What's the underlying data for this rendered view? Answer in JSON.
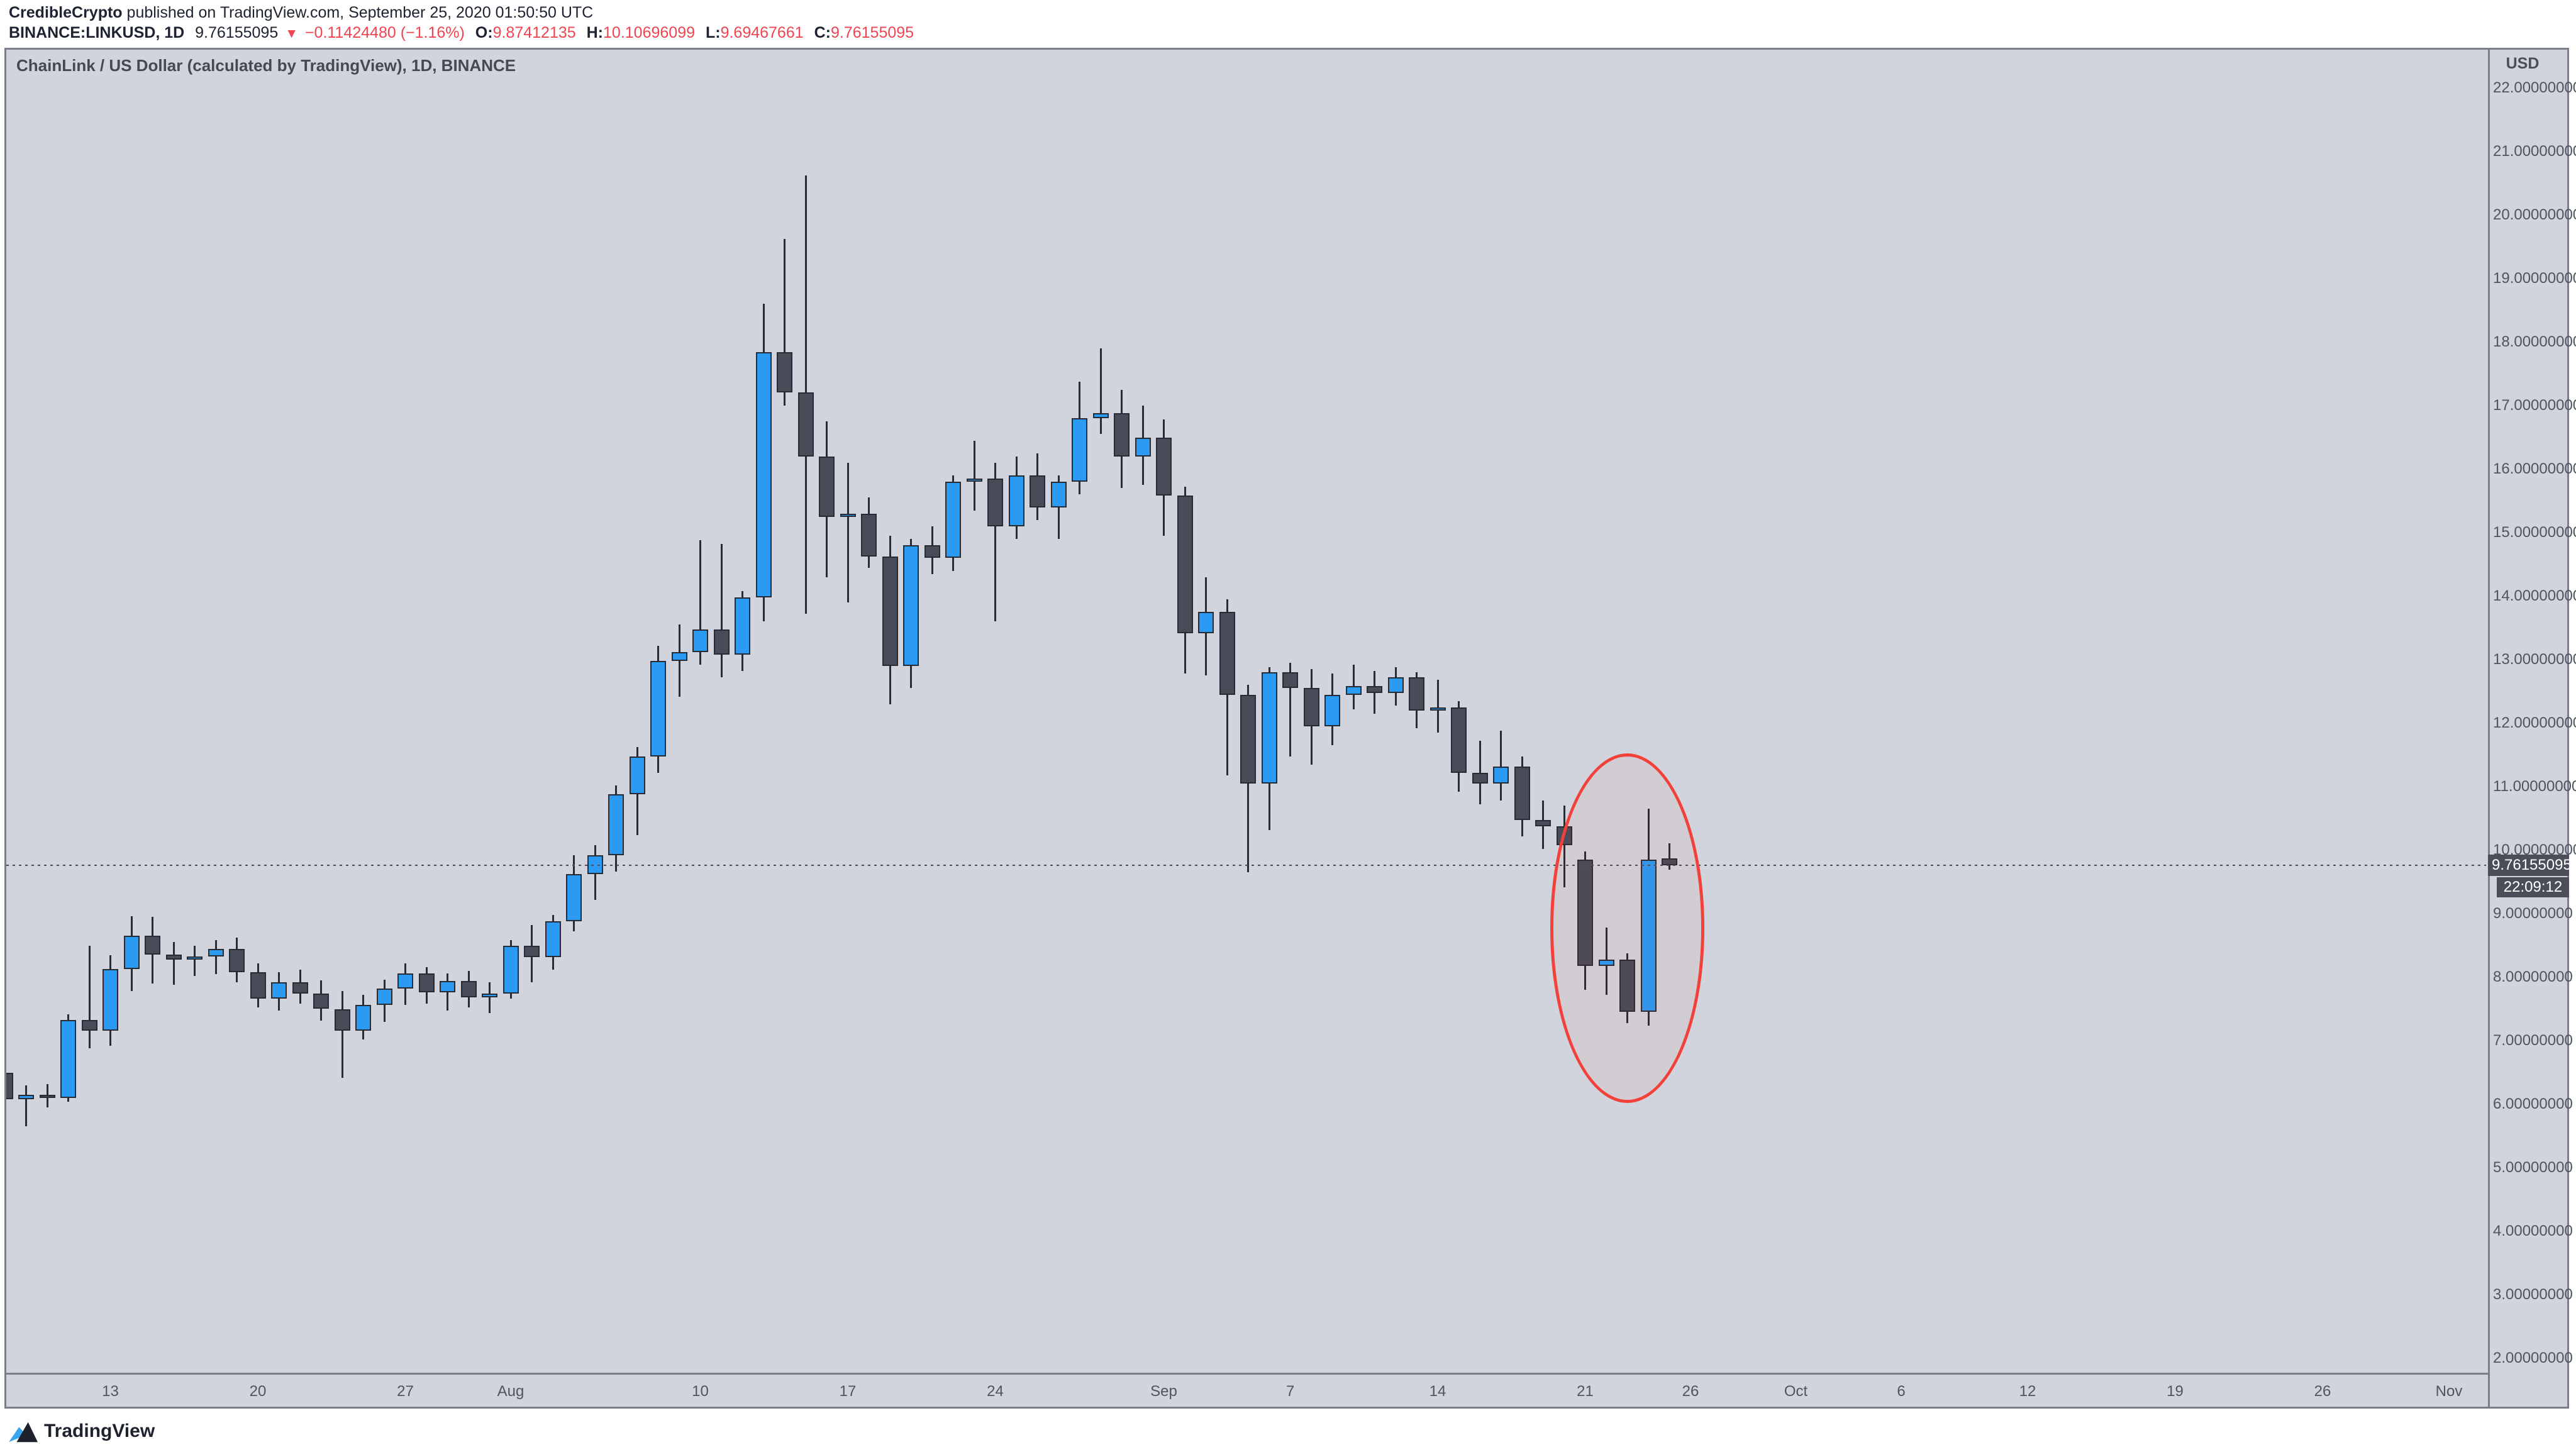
{
  "header": {
    "author": "CredibleCrypto",
    "published": " published on TradingView.com, September 25, 2020 01:50:50 UTC",
    "symbol": "BINANCE:LINKUSD, 1D",
    "last_price": "9.76155095",
    "direction_arrow": "▼",
    "change": "−0.11424480 (−1.16%)",
    "o_label": "O:",
    "o_value": "9.87412135",
    "h_label": "H:",
    "h_value": "10.10696099",
    "l_label": "L:",
    "l_value": "9.69467661",
    "c_label": "C:",
    "c_value": "9.76155095"
  },
  "chart": {
    "title": "ChainLink / US Dollar (calculated by TradingView), 1D, BINANCE",
    "axis_currency": "USD",
    "price_label": "9.76155095",
    "countdown": "22:09:12"
  },
  "footer": {
    "brand": "TradingView"
  },
  "colors": {
    "pane_bg": "#d1d4dc",
    "up_candle": "#2a9af2",
    "down_candle": "#474c58",
    "candle_outline": "#272b33",
    "value_red": "#ef4553",
    "ellipse_red": "#f2413b",
    "label_bg": "#4a4e59",
    "axis_text": "#4f545e"
  },
  "chart_data": {
    "type": "candlestick",
    "title": "ChainLink / US Dollar (calculated by TradingView), 1D, BINANCE",
    "ylabel": "USD",
    "ylim": [
      2,
      22
    ],
    "grid": false,
    "legend_position": "none",
    "price_ticks": [
      "2.00000000",
      "3.00000000",
      "4.00000000",
      "5.00000000",
      "6.00000000",
      "7.00000000",
      "8.00000000",
      "9.00000000",
      "10.00000000",
      "11.00000000",
      "12.00000000",
      "13.00000000",
      "14.00000000",
      "15.00000000",
      "16.00000000",
      "17.00000000",
      "18.00000000",
      "19.00000000",
      "20.00000000",
      "21.00000000",
      "22.00000000"
    ],
    "time_ticks": [
      {
        "label": "13",
        "day": 5
      },
      {
        "label": "20",
        "day": 12
      },
      {
        "label": "27",
        "day": 19
      },
      {
        "label": "Aug",
        "day": 24
      },
      {
        "label": "10",
        "day": 33
      },
      {
        "label": "17",
        "day": 40
      },
      {
        "label": "24",
        "day": 47
      },
      {
        "label": "Sep",
        "day": 55
      },
      {
        "label": "7",
        "day": 61
      },
      {
        "label": "14",
        "day": 68
      },
      {
        "label": "21",
        "day": 75
      },
      {
        "label": "26",
        "day": 80
      },
      {
        "label": "Oct",
        "day": 85
      },
      {
        "label": "6",
        "day": 90
      },
      {
        "label": "12",
        "day": 96
      },
      {
        "label": "19",
        "day": 103
      },
      {
        "label": "26",
        "day": 110
      },
      {
        "label": "Nov",
        "day": 116
      }
    ],
    "price_line": 9.76155095,
    "countdown": "22:09:12",
    "annotations": {
      "ellipse": {
        "center_day": 77.0,
        "center_price": 8.77,
        "rx_days": 3.67,
        "ry_price": 2.75
      }
    },
    "candles": [
      {
        "date": "Jul 8",
        "o": 6.5,
        "h": 6.72,
        "l": 5.92,
        "c": 6.08
      },
      {
        "date": "Jul 9",
        "o": 6.08,
        "h": 6.3,
        "l": 5.65,
        "c": 6.15
      },
      {
        "date": "Jul 10",
        "o": 6.15,
        "h": 6.32,
        "l": 5.95,
        "c": 6.1
      },
      {
        "date": "Jul 11",
        "o": 6.1,
        "h": 7.42,
        "l": 6.04,
        "c": 7.33
      },
      {
        "date": "Jul 12",
        "o": 7.33,
        "h": 8.5,
        "l": 6.88,
        "c": 7.16
      },
      {
        "date": "Jul 13",
        "o": 7.16,
        "h": 8.35,
        "l": 6.92,
        "c": 8.13
      },
      {
        "date": "Jul 14",
        "o": 8.13,
        "h": 8.96,
        "l": 7.78,
        "c": 8.65
      },
      {
        "date": "Jul 15",
        "o": 8.65,
        "h": 8.95,
        "l": 7.9,
        "c": 8.36
      },
      {
        "date": "Jul 16",
        "o": 8.36,
        "h": 8.55,
        "l": 7.88,
        "c": 8.28
      },
      {
        "date": "Jul 17",
        "o": 8.28,
        "h": 8.5,
        "l": 8.02,
        "c": 8.33
      },
      {
        "date": "Jul 18",
        "o": 8.33,
        "h": 8.58,
        "l": 8.05,
        "c": 8.45
      },
      {
        "date": "Jul 19",
        "o": 8.45,
        "h": 8.62,
        "l": 7.92,
        "c": 8.08
      },
      {
        "date": "Jul 20",
        "o": 8.08,
        "h": 8.22,
        "l": 7.52,
        "c": 7.66
      },
      {
        "date": "Jul 21",
        "o": 7.66,
        "h": 8.08,
        "l": 7.48,
        "c": 7.92
      },
      {
        "date": "Jul 22",
        "o": 7.92,
        "h": 8.12,
        "l": 7.58,
        "c": 7.74
      },
      {
        "date": "Jul 23",
        "o": 7.74,
        "h": 7.95,
        "l": 7.32,
        "c": 7.5
      },
      {
        "date": "Jul 24",
        "o": 7.5,
        "h": 7.78,
        "l": 6.42,
        "c": 7.16
      },
      {
        "date": "Jul 25",
        "o": 7.16,
        "h": 7.72,
        "l": 7.02,
        "c": 7.56
      },
      {
        "date": "Jul 26",
        "o": 7.56,
        "h": 7.96,
        "l": 7.3,
        "c": 7.82
      },
      {
        "date": "Jul 27",
        "o": 7.82,
        "h": 8.22,
        "l": 7.56,
        "c": 8.06
      },
      {
        "date": "Jul 28",
        "o": 8.06,
        "h": 8.16,
        "l": 7.58,
        "c": 7.76
      },
      {
        "date": "Jul 29",
        "o": 7.76,
        "h": 8.06,
        "l": 7.48,
        "c": 7.94
      },
      {
        "date": "Jul 30",
        "o": 7.94,
        "h": 8.1,
        "l": 7.52,
        "c": 7.68
      },
      {
        "date": "Jul 31",
        "o": 7.68,
        "h": 7.92,
        "l": 7.44,
        "c": 7.74
      },
      {
        "date": "Aug 1",
        "o": 7.74,
        "h": 8.58,
        "l": 7.66,
        "c": 8.5
      },
      {
        "date": "Aug 2",
        "o": 8.5,
        "h": 8.82,
        "l": 7.92,
        "c": 8.32
      },
      {
        "date": "Aug 3",
        "o": 8.32,
        "h": 8.98,
        "l": 8.12,
        "c": 8.88
      },
      {
        "date": "Aug 4",
        "o": 8.88,
        "h": 9.92,
        "l": 8.72,
        "c": 9.62
      },
      {
        "date": "Aug 5",
        "o": 9.62,
        "h": 10.08,
        "l": 9.22,
        "c": 9.92
      },
      {
        "date": "Aug 6",
        "o": 9.92,
        "h": 11.02,
        "l": 9.66,
        "c": 10.88
      },
      {
        "date": "Aug 7",
        "o": 10.88,
        "h": 11.62,
        "l": 10.24,
        "c": 11.48
      },
      {
        "date": "Aug 8",
        "o": 11.48,
        "h": 13.22,
        "l": 11.22,
        "c": 12.98
      },
      {
        "date": "Aug 9",
        "o": 12.98,
        "h": 13.55,
        "l": 12.42,
        "c": 13.12
      },
      {
        "date": "Aug 10",
        "o": 13.12,
        "h": 14.88,
        "l": 12.92,
        "c": 13.48
      },
      {
        "date": "Aug 11",
        "o": 13.48,
        "h": 14.82,
        "l": 12.72,
        "c": 13.08
      },
      {
        "date": "Aug 12",
        "o": 13.08,
        "h": 14.08,
        "l": 12.82,
        "c": 13.98
      },
      {
        "date": "Aug 13",
        "o": 13.98,
        "h": 18.6,
        "l": 13.6,
        "c": 17.84
      },
      {
        "date": "Aug 14",
        "o": 17.84,
        "h": 19.62,
        "l": 17.0,
        "c": 17.21
      },
      {
        "date": "Aug 15",
        "o": 17.21,
        "h": 20.62,
        "l": 13.72,
        "c": 16.2
      },
      {
        "date": "Aug 16",
        "o": 16.2,
        "h": 16.75,
        "l": 14.3,
        "c": 15.25
      },
      {
        "date": "Aug 17",
        "o": 15.25,
        "h": 16.1,
        "l": 13.9,
        "c": 15.3
      },
      {
        "date": "Aug 18",
        "o": 15.3,
        "h": 15.55,
        "l": 14.45,
        "c": 14.62
      },
      {
        "date": "Aug 19",
        "o": 14.62,
        "h": 14.95,
        "l": 12.3,
        "c": 12.9
      },
      {
        "date": "Aug 20",
        "o": 12.9,
        "h": 14.9,
        "l": 12.55,
        "c": 14.8
      },
      {
        "date": "Aug 21",
        "o": 14.8,
        "h": 15.1,
        "l": 14.35,
        "c": 14.6
      },
      {
        "date": "Aug 22",
        "o": 14.6,
        "h": 15.9,
        "l": 14.4,
        "c": 15.8
      },
      {
        "date": "Aug 23",
        "o": 15.8,
        "h": 16.45,
        "l": 15.35,
        "c": 15.85
      },
      {
        "date": "Aug 24",
        "o": 15.85,
        "h": 16.1,
        "l": 13.6,
        "c": 15.1
      },
      {
        "date": "Aug 25",
        "o": 15.1,
        "h": 16.2,
        "l": 14.9,
        "c": 15.9
      },
      {
        "date": "Aug 26",
        "o": 15.9,
        "h": 16.25,
        "l": 15.2,
        "c": 15.4
      },
      {
        "date": "Aug 27",
        "o": 15.4,
        "h": 15.9,
        "l": 14.9,
        "c": 15.8
      },
      {
        "date": "Aug 28",
        "o": 15.8,
        "h": 17.38,
        "l": 15.6,
        "c": 16.8
      },
      {
        "date": "Aug 29",
        "o": 16.8,
        "h": 17.9,
        "l": 16.55,
        "c": 16.88
      },
      {
        "date": "Aug 30",
        "o": 16.88,
        "h": 17.25,
        "l": 15.7,
        "c": 16.2
      },
      {
        "date": "Aug 31",
        "o": 16.2,
        "h": 17.0,
        "l": 15.75,
        "c": 16.5
      },
      {
        "date": "Sep 1",
        "o": 16.5,
        "h": 16.78,
        "l": 14.95,
        "c": 15.58
      },
      {
        "date": "Sep 2",
        "o": 15.58,
        "h": 15.72,
        "l": 12.78,
        "c": 13.42
      },
      {
        "date": "Sep 3",
        "o": 13.42,
        "h": 14.3,
        "l": 12.75,
        "c": 13.75
      },
      {
        "date": "Sep 4",
        "o": 13.75,
        "h": 13.95,
        "l": 11.18,
        "c": 12.45
      },
      {
        "date": "Sep 5",
        "o": 12.45,
        "h": 12.6,
        "l": 9.65,
        "c": 11.05
      },
      {
        "date": "Sep 6",
        "o": 11.05,
        "h": 12.88,
        "l": 10.32,
        "c": 12.8
      },
      {
        "date": "Sep 7",
        "o": 12.8,
        "h": 12.95,
        "l": 11.48,
        "c": 12.55
      },
      {
        "date": "Sep 8",
        "o": 12.55,
        "h": 12.85,
        "l": 11.35,
        "c": 11.95
      },
      {
        "date": "Sep 9",
        "o": 11.95,
        "h": 12.78,
        "l": 11.65,
        "c": 12.45
      },
      {
        "date": "Sep 10",
        "o": 12.45,
        "h": 12.92,
        "l": 12.22,
        "c": 12.58
      },
      {
        "date": "Sep 11",
        "o": 12.58,
        "h": 12.82,
        "l": 12.15,
        "c": 12.48
      },
      {
        "date": "Sep 12",
        "o": 12.48,
        "h": 12.88,
        "l": 12.28,
        "c": 12.72
      },
      {
        "date": "Sep 13",
        "o": 12.72,
        "h": 12.8,
        "l": 11.92,
        "c": 12.2
      },
      {
        "date": "Sep 14",
        "o": 12.2,
        "h": 12.68,
        "l": 11.85,
        "c": 12.25
      },
      {
        "date": "Sep 15",
        "o": 12.25,
        "h": 12.35,
        "l": 10.92,
        "c": 11.22
      },
      {
        "date": "Sep 16",
        "o": 11.22,
        "h": 11.72,
        "l": 10.72,
        "c": 11.05
      },
      {
        "date": "Sep 17",
        "o": 11.05,
        "h": 11.88,
        "l": 10.78,
        "c": 11.32
      },
      {
        "date": "Sep 18",
        "o": 11.32,
        "h": 11.48,
        "l": 10.22,
        "c": 10.48
      },
      {
        "date": "Sep 19",
        "o": 10.48,
        "h": 10.78,
        "l": 10.02,
        "c": 10.38
      },
      {
        "date": "Sep 20",
        "o": 10.38,
        "h": 10.7,
        "l": 9.42,
        "c": 10.08
      },
      {
        "date": "Sep 21",
        "o": 9.85,
        "h": 9.98,
        "l": 7.8,
        "c": 8.18
      },
      {
        "date": "Sep 22",
        "o": 8.18,
        "h": 8.78,
        "l": 7.72,
        "c": 8.28
      },
      {
        "date": "Sep 23",
        "o": 8.28,
        "h": 8.38,
        "l": 7.28,
        "c": 7.46
      },
      {
        "date": "Sep 24",
        "o": 7.46,
        "h": 10.65,
        "l": 7.24,
        "c": 9.85
      },
      {
        "date": "Sep 25",
        "o": 9.87412135,
        "h": 10.10696099,
        "l": 9.69467661,
        "c": 9.76155095
      }
    ]
  }
}
